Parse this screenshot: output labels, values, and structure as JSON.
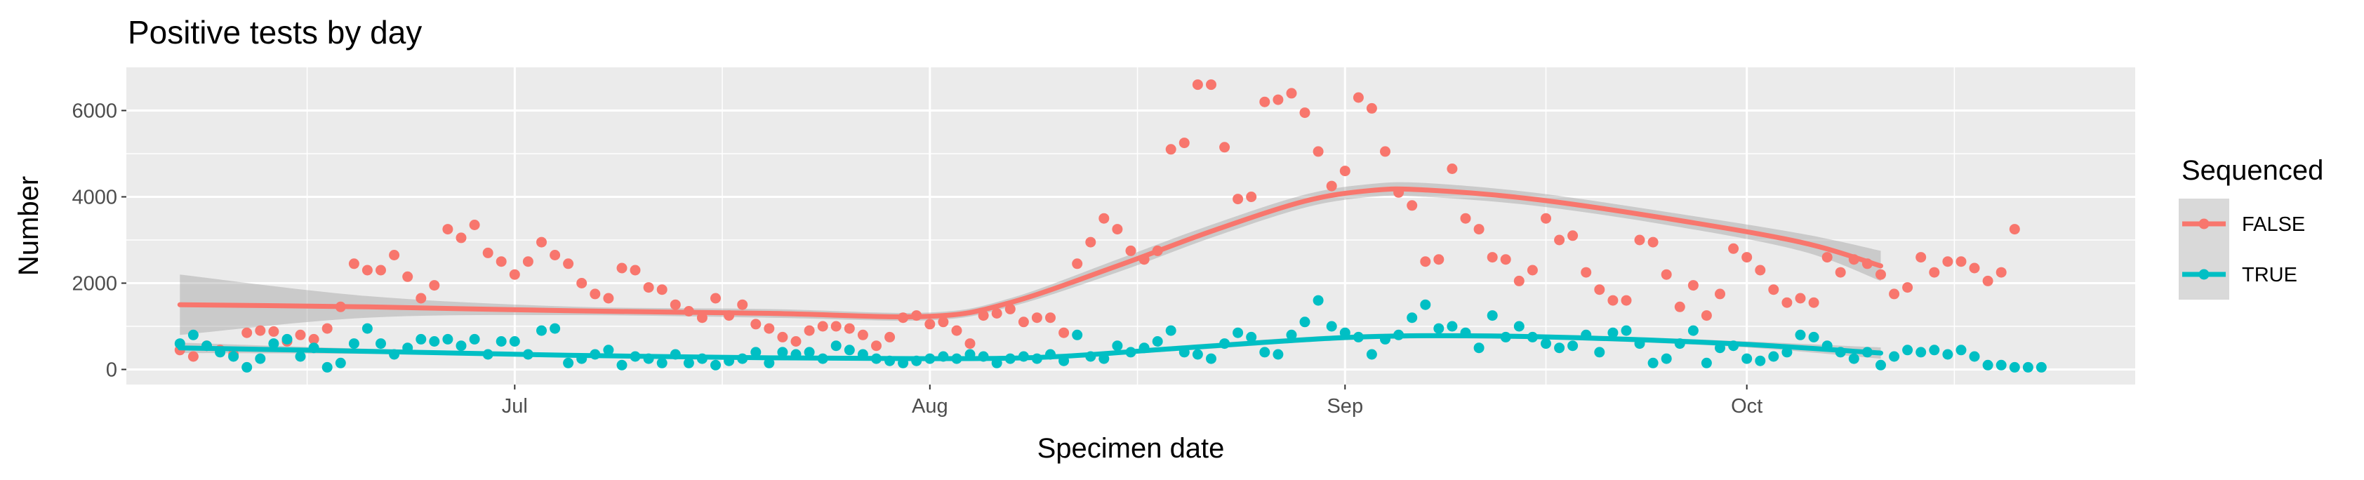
{
  "chart_data": {
    "type": "scatter",
    "title": "Positive tests by day",
    "xlabel": "Specimen date",
    "ylabel": "Number",
    "x_axis": {
      "type": "date",
      "range": [
        "2021-06-02",
        "2021-10-30"
      ],
      "ticks": [
        {
          "date": "2021-07-01",
          "label": "Jul"
        },
        {
          "date": "2021-08-01",
          "label": "Aug"
        },
        {
          "date": "2021-09-01",
          "label": "Sep"
        },
        {
          "date": "2021-10-01",
          "label": "Oct"
        }
      ]
    },
    "y_axis": {
      "range": [
        -350,
        7000
      ],
      "ticks": [
        0,
        2000,
        4000,
        6000
      ],
      "tick_labels": [
        "0",
        "2000",
        "4000",
        "6000"
      ]
    },
    "grid": true,
    "legend": {
      "title": "Sequenced",
      "placement": "right",
      "entries": [
        "FALSE",
        "TRUE"
      ]
    },
    "series": [
      {
        "name": "FALSE",
        "color": "#F8766D",
        "start_date": "2021-06-06",
        "values": [
          450,
          300,
          550,
          450,
          350,
          850,
          900,
          880,
          650,
          800,
          700,
          950,
          1450,
          2450,
          2300,
          2300,
          2650,
          2150,
          1650,
          1950,
          3250,
          3050,
          3350,
          2700,
          2500,
          2200,
          2500,
          2950,
          2650,
          2450,
          2000,
          1750,
          1650,
          2350,
          2300,
          1900,
          1850,
          1500,
          1350,
          1200,
          1650,
          1250,
          1500,
          1050,
          950,
          750,
          650,
          900,
          1000,
          1000,
          950,
          800,
          550,
          750,
          1200,
          1250,
          1050,
          1100,
          900,
          600,
          1250,
          1300,
          1400,
          1100,
          1200,
          1200,
          850,
          2450,
          2950,
          3500,
          3250,
          2750,
          2550,
          2750,
          5100,
          5250,
          6600,
          6600,
          5150,
          3950,
          4000,
          6200,
          6250,
          6400,
          5950,
          5050,
          4250,
          4600,
          6300,
          6050,
          5050,
          4100,
          3800,
          2500,
          2550,
          4650,
          3500,
          3250,
          2600,
          2550,
          2050,
          2300,
          3500,
          3000,
          3100,
          2250,
          1850,
          1600,
          1600,
          3000,
          2950,
          2200,
          1450,
          1950,
          1250,
          1750,
          2800,
          2600,
          2300,
          1850,
          1550,
          1650,
          1550,
          2600,
          2250,
          2550,
          2450,
          2200,
          1750,
          1900,
          2600,
          2250,
          2500,
          2500,
          2350,
          2050,
          2250,
          3250
        ]
      },
      {
        "name": "TRUE",
        "color": "#00BFC4",
        "start_date": "2021-06-06",
        "values": [
          600,
          800,
          550,
          400,
          300,
          50,
          250,
          600,
          700,
          300,
          500,
          50,
          150,
          600,
          950,
          600,
          350,
          500,
          700,
          650,
          700,
          550,
          700,
          350,
          650,
          650,
          350,
          900,
          950,
          150,
          250,
          350,
          450,
          100,
          300,
          250,
          150,
          350,
          150,
          250,
          100,
          200,
          250,
          400,
          150,
          400,
          350,
          400,
          250,
          550,
          450,
          350,
          250,
          200,
          150,
          200,
          250,
          300,
          250,
          350,
          300,
          150,
          250,
          300,
          250,
          350,
          200,
          800,
          300,
          250,
          550,
          400,
          500,
          650,
          900,
          400,
          350,
          250,
          600,
          850,
          750,
          400,
          350,
          800,
          1100,
          1600,
          1000,
          850,
          750,
          350,
          700,
          800,
          1200,
          1500,
          950,
          1000,
          850,
          500,
          1250,
          750,
          1000,
          750,
          600,
          500,
          550,
          800,
          400,
          850,
          900,
          600,
          150,
          250,
          600,
          900,
          150,
          500,
          550,
          250,
          200,
          300,
          400,
          800,
          750,
          550,
          400,
          250,
          400,
          100,
          300,
          450,
          400,
          450,
          350,
          450,
          300,
          100,
          100,
          50,
          50,
          50
        ]
      }
    ],
    "smooth": [
      {
        "name": "FALSE",
        "color": "#F8766D",
        "dates": [
          "2021-06-06",
          "2021-06-20",
          "2021-07-05",
          "2021-07-20",
          "2021-08-01",
          "2021-08-07",
          "2021-08-15",
          "2021-08-22",
          "2021-08-29",
          "2021-09-03",
          "2021-09-07",
          "2021-09-15",
          "2021-09-25",
          "2021-10-05",
          "2021-10-11"
        ],
        "values": [
          1500,
          1450,
          1360,
          1300,
          1230,
          1550,
          2400,
          3200,
          3900,
          4150,
          4160,
          3950,
          3500,
          2950,
          2400
        ],
        "band_lower": [
          800,
          1200,
          1260,
          1200,
          1140,
          1450,
          2250,
          3050,
          3750,
          4000,
          4000,
          3800,
          3350,
          2750,
          2050
        ],
        "band_upper": [
          2200,
          1700,
          1460,
          1400,
          1320,
          1650,
          2550,
          3350,
          4050,
          4300,
          4320,
          4100,
          3650,
          3150,
          2750
        ]
      },
      {
        "name": "TRUE",
        "color": "#00BFC4",
        "dates": [
          "2021-06-06",
          "2021-06-20",
          "2021-07-05",
          "2021-07-20",
          "2021-08-01",
          "2021-08-10",
          "2021-08-20",
          "2021-09-01",
          "2021-09-10",
          "2021-09-20",
          "2021-10-01",
          "2021-10-11"
        ],
        "values": [
          500,
          420,
          330,
          270,
          250,
          290,
          500,
          740,
          780,
          720,
          580,
          380
        ],
        "band_lower": [
          380,
          360,
          290,
          230,
          210,
          250,
          440,
          680,
          720,
          660,
          510,
          250
        ],
        "band_upper": [
          620,
          480,
          370,
          310,
          290,
          330,
          560,
          800,
          840,
          780,
          650,
          510
        ]
      }
    ]
  }
}
